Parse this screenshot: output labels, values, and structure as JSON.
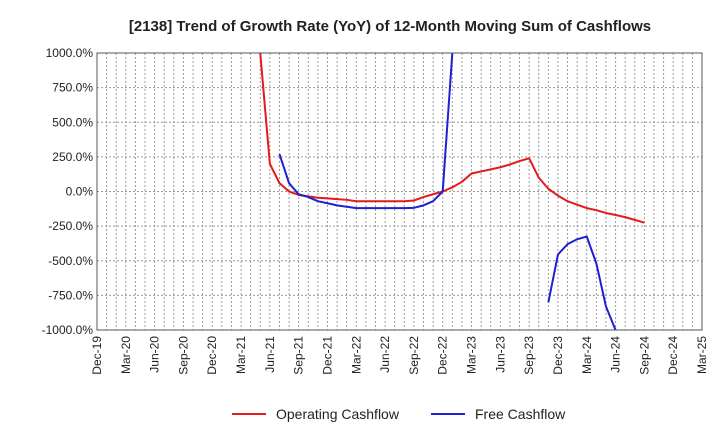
{
  "chart_data": {
    "type": "line",
    "title": "[2138]  Trend of Growth Rate (YoY) of 12-Month Moving Sum of Cashflows",
    "xlabel": "",
    "ylabel": "",
    "ylim": [
      -1000,
      1000
    ],
    "yticks": [
      -1000,
      -750,
      -500,
      -250,
      0,
      250,
      500,
      750,
      1000
    ],
    "ytick_labels": [
      "-1000.0%",
      "-750.0%",
      "-500.0%",
      "-250.0%",
      "0.0%",
      "250.0%",
      "500.0%",
      "750.0%",
      "1000.0%"
    ],
    "x_categories": [
      "Dec-19",
      "Jan-20",
      "Feb-20",
      "Mar-20",
      "Apr-20",
      "May-20",
      "Jun-20",
      "Jul-20",
      "Aug-20",
      "Sep-20",
      "Oct-20",
      "Nov-20",
      "Dec-20",
      "Jan-21",
      "Feb-21",
      "Mar-21",
      "Apr-21",
      "May-21",
      "Jun-21",
      "Jul-21",
      "Aug-21",
      "Sep-21",
      "Oct-21",
      "Nov-21",
      "Dec-21",
      "Jan-22",
      "Feb-22",
      "Mar-22",
      "Apr-22",
      "May-22",
      "Jun-22",
      "Jul-22",
      "Aug-22",
      "Sep-22",
      "Oct-22",
      "Nov-22",
      "Dec-22",
      "Jan-23",
      "Feb-23",
      "Mar-23",
      "Apr-23",
      "May-23",
      "Jun-23",
      "Jul-23",
      "Aug-23",
      "Sep-23",
      "Oct-23",
      "Nov-23",
      "Dec-23",
      "Jan-24",
      "Feb-24",
      "Mar-24",
      "Apr-24",
      "May-24",
      "Jun-24",
      "Jul-24",
      "Aug-24",
      "Sep-24",
      "Oct-24",
      "Nov-24",
      "Dec-24",
      "Jan-25",
      "Feb-25",
      "Mar-25"
    ],
    "xtick_labels": [
      "Dec-19",
      "Mar-20",
      "Jun-20",
      "Sep-20",
      "Dec-20",
      "Mar-21",
      "Jun-21",
      "Sep-21",
      "Dec-21",
      "Mar-22",
      "Jun-22",
      "Sep-22",
      "Dec-22",
      "Mar-23",
      "Jun-23",
      "Sep-23",
      "Dec-23",
      "Mar-24",
      "Jun-24",
      "Sep-24",
      "Dec-24",
      "Mar-25"
    ],
    "grid": true,
    "legend_position": "bottom",
    "series": [
      {
        "name": "Operating Cashflow",
        "color": "#e41a1c",
        "points": [
          [
            "May-21",
            1000
          ],
          [
            "Jun-21",
            200
          ],
          [
            "Jul-21",
            60
          ],
          [
            "Aug-21",
            0
          ],
          [
            "Sep-21",
            -25
          ],
          [
            "Oct-21",
            -35
          ],
          [
            "Nov-21",
            -45
          ],
          [
            "Dec-21",
            -50
          ],
          [
            "Jan-22",
            -55
          ],
          [
            "Feb-22",
            -60
          ],
          [
            "Mar-22",
            -70
          ],
          [
            "Apr-22",
            -70
          ],
          [
            "May-22",
            -70
          ],
          [
            "Jun-22",
            -70
          ],
          [
            "Jul-22",
            -70
          ],
          [
            "Aug-22",
            -70
          ],
          [
            "Sep-22",
            -65
          ],
          [
            "Oct-22",
            -40
          ],
          [
            "Nov-22",
            -20
          ],
          [
            "Dec-22",
            0
          ],
          [
            "Jan-23",
            30
          ],
          [
            "Feb-23",
            70
          ],
          [
            "Mar-23",
            130
          ],
          [
            "Apr-23",
            145
          ],
          [
            "May-23",
            160
          ],
          [
            "Jun-23",
            175
          ],
          [
            "Jul-23",
            195
          ],
          [
            "Aug-23",
            220
          ],
          [
            "Sep-23",
            240
          ],
          [
            "Oct-23",
            100
          ],
          [
            "Nov-23",
            20
          ],
          [
            "Dec-23",
            -30
          ],
          [
            "Jan-24",
            -70
          ],
          [
            "Feb-24",
            -95
          ],
          [
            "Mar-24",
            -120
          ],
          [
            "Apr-24",
            -135
          ],
          [
            "May-24",
            -155
          ],
          [
            "Jun-24",
            -170
          ],
          [
            "Jul-24",
            -185
          ],
          [
            "Aug-24",
            -205
          ],
          [
            "Sep-24",
            -225
          ]
        ]
      },
      {
        "name": "Free Cashflow",
        "color": "#1f1fd6",
        "segments": [
          [
            [
              "Jul-21",
              270
            ],
            [
              "Aug-21",
              60
            ],
            [
              "Sep-21",
              -20
            ],
            [
              "Oct-21",
              -40
            ],
            [
              "Nov-21",
              -70
            ],
            [
              "Dec-21",
              -85
            ],
            [
              "Jan-22",
              -100
            ],
            [
              "Feb-22",
              -110
            ],
            [
              "Mar-22",
              -120
            ],
            [
              "Apr-22",
              -120
            ],
            [
              "May-22",
              -120
            ],
            [
              "Jun-22",
              -120
            ],
            [
              "Jul-22",
              -120
            ],
            [
              "Aug-22",
              -120
            ],
            [
              "Sep-22",
              -118
            ],
            [
              "Oct-22",
              -100
            ],
            [
              "Nov-22",
              -70
            ],
            [
              "Dec-22",
              0
            ],
            [
              "Jan-23",
              1000
            ]
          ],
          [
            [
              "Nov-23",
              -800
            ],
            [
              "Dec-23",
              -455
            ],
            [
              "Jan-24",
              -380
            ],
            [
              "Feb-24",
              -345
            ],
            [
              "Mar-24",
              -325
            ],
            [
              "Apr-24",
              -520
            ],
            [
              "May-24",
              -830
            ],
            [
              "Jun-24",
              -1000
            ]
          ]
        ]
      }
    ]
  }
}
